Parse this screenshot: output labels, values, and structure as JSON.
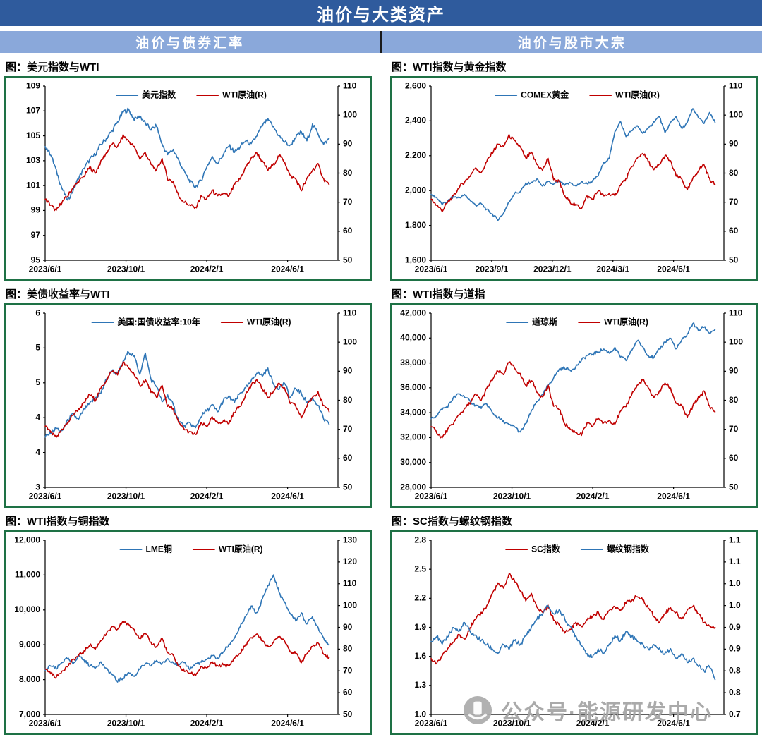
{
  "page": {
    "title": "油价与大类资产",
    "left_header": "油价与债券汇率",
    "right_header": "油价与股市大宗"
  },
  "watermark": {
    "text": "公众号·能源研发中心"
  },
  "colors": {
    "title_bg": "#2F5B9D",
    "subheader_bg": "#8AA8DA",
    "divider": "#1a1a1a",
    "panel_border": "#1E7145",
    "blue": "#2E75B6",
    "red": "#C00000",
    "axis": "#000000",
    "watermark_gray": "#A3A3A3"
  },
  "chart_data": [
    {
      "id": "dollar-index-wti",
      "type": "line",
      "title": "图：美元指数与WTI",
      "legend_position": "top-center",
      "grid": false,
      "x_labels": [
        {
          "text": "2023/6/1",
          "pos": 0.0
        },
        {
          "text": "2023/10/1",
          "pos": 0.276
        },
        {
          "text": "2024/2/1",
          "pos": 0.552
        },
        {
          "text": "2024/6/1",
          "pos": 0.828
        }
      ],
      "left_axis": {
        "min": 95,
        "max": 109,
        "tick_labels": [
          "109",
          "107",
          "105",
          "103",
          "101",
          "99",
          "97",
          "95"
        ]
      },
      "right_axis": {
        "min": 50,
        "max": 110,
        "tick_labels": [
          "110",
          "100",
          "90",
          "80",
          "70",
          "60",
          "50"
        ]
      },
      "series": [
        {
          "name": "美元指数",
          "color": "blue",
          "axis": "left",
          "jitter": 0.35,
          "values": [
            104.2,
            103.5,
            102.2,
            100.8,
            99.8,
            100.6,
            101.6,
            102.4,
            103.1,
            103.5,
            104.3,
            104.8,
            105.4,
            106.1,
            106.9,
            107.1,
            106.3,
            106.6,
            106.0,
            105.5,
            105.8,
            104.3,
            103.5,
            103.9,
            103.0,
            102.1,
            101.3,
            100.9,
            101.4,
            102.5,
            103.3,
            102.8,
            103.5,
            104.2,
            103.7,
            104.1,
            104.6,
            104.3,
            105.0,
            105.8,
            106.3,
            105.7,
            105.0,
            104.5,
            104.2,
            104.9,
            105.3,
            104.6,
            105.9,
            105.2,
            104.3,
            104.8
          ]
        },
        {
          "name": "WTI原油(R)",
          "color": "red",
          "axis": "right",
          "jitter": 1.3,
          "values": [
            71,
            69,
            67,
            70,
            72,
            75,
            77,
            79,
            82,
            80,
            84,
            87,
            90,
            89,
            93,
            91,
            89,
            85,
            87,
            83,
            81,
            85,
            78,
            77,
            72,
            70,
            69,
            68,
            72,
            71,
            74,
            72,
            73,
            72,
            76,
            78,
            82,
            85,
            87,
            84,
            81,
            83,
            86,
            84,
            79,
            78,
            74,
            78,
            81,
            83,
            78,
            76
          ]
        }
      ]
    },
    {
      "id": "gold-wti",
      "type": "line",
      "title": "图：WTI指数与黄金指数",
      "legend_position": "top-center",
      "grid": false,
      "x_labels": [
        {
          "text": "2023/6/1",
          "pos": 0.0
        },
        {
          "text": "2023/9/1",
          "pos": 0.207
        },
        {
          "text": "2023/12/1",
          "pos": 0.414
        },
        {
          "text": "2024/3/1",
          "pos": 0.621
        },
        {
          "text": "2024/6/1",
          "pos": 0.828
        }
      ],
      "left_axis": {
        "min": 1600,
        "max": 2600,
        "tick_labels": [
          "2,600",
          "2,400",
          "2,200",
          "2,000",
          "1,800",
          "1,600"
        ]
      },
      "right_axis": {
        "min": 50,
        "max": 110,
        "tick_labels": [
          "110",
          "100",
          "90",
          "80",
          "70",
          "60",
          "50"
        ]
      },
      "series": [
        {
          "name": "COMEX黄金",
          "color": "blue",
          "axis": "left",
          "jitter": 14,
          "values": [
            1975,
            1960,
            1920,
            1940,
            1965,
            1958,
            1975,
            1945,
            1915,
            1925,
            1890,
            1865,
            1832,
            1870,
            1935,
            1985,
            1992,
            2040,
            2045,
            2065,
            2025,
            2050,
            2035,
            2055,
            2030,
            2045,
            2025,
            2048,
            2040,
            2055,
            2085,
            2160,
            2185,
            2340,
            2395,
            2310,
            2345,
            2370,
            2330,
            2355,
            2395,
            2425,
            2330,
            2390,
            2425,
            2355,
            2390,
            2470,
            2420,
            2385,
            2445,
            2390
          ]
        },
        {
          "name": "WTI原油(R)",
          "color": "red",
          "axis": "right",
          "jitter": 1.3,
          "values": [
            71,
            69,
            67,
            70,
            72,
            75,
            77,
            79,
            82,
            80,
            84,
            87,
            90,
            89,
            93,
            91,
            89,
            85,
            87,
            83,
            81,
            85,
            78,
            77,
            72,
            70,
            69,
            68,
            72,
            71,
            74,
            72,
            73,
            72,
            76,
            78,
            82,
            85,
            87,
            84,
            81,
            83,
            86,
            84,
            79,
            78,
            74,
            78,
            81,
            83,
            78,
            76
          ]
        }
      ]
    },
    {
      "id": "treasury-yield-wti",
      "type": "line",
      "title": "图：美债收益率与WTI",
      "legend_position": "top-center",
      "grid": false,
      "x_labels": [
        {
          "text": "2023/6/1",
          "pos": 0.0
        },
        {
          "text": "2023/10/1",
          "pos": 0.276
        },
        {
          "text": "2024/2/1",
          "pos": 0.552
        },
        {
          "text": "2024/6/1",
          "pos": 0.828
        }
      ],
      "left_axis": {
        "min": 3.0,
        "max": 5.5,
        "tick_labels": [
          "6",
          "5",
          "5",
          "4",
          "4",
          "3"
        ]
      },
      "right_axis": {
        "min": 50,
        "max": 110,
        "tick_labels": [
          "110",
          "100",
          "90",
          "80",
          "70",
          "60",
          "50"
        ]
      },
      "series": [
        {
          "name": "美国:国债收益率:10年",
          "color": "blue",
          "axis": "left",
          "jitter": 0.06,
          "values": [
            3.72,
            3.78,
            3.85,
            3.8,
            3.96,
            4.05,
            3.97,
            4.12,
            4.2,
            4.28,
            4.35,
            4.55,
            4.68,
            4.62,
            4.8,
            4.95,
            4.88,
            4.63,
            4.92,
            4.55,
            4.45,
            4.22,
            4.32,
            4.18,
            3.95,
            3.88,
            3.92,
            3.85,
            4.02,
            4.1,
            4.18,
            4.08,
            4.25,
            4.3,
            4.22,
            4.35,
            4.42,
            4.52,
            4.65,
            4.6,
            4.7,
            4.48,
            4.42,
            4.5,
            4.28,
            4.42,
            4.35,
            4.22,
            4.28,
            4.18,
            3.98,
            3.9
          ]
        },
        {
          "name": "WTI原油(R)",
          "color": "red",
          "axis": "right",
          "jitter": 1.3,
          "values": [
            71,
            69,
            67,
            70,
            72,
            75,
            77,
            79,
            82,
            80,
            84,
            87,
            90,
            89,
            93,
            91,
            89,
            85,
            87,
            83,
            81,
            85,
            78,
            77,
            72,
            70,
            69,
            68,
            72,
            71,
            74,
            72,
            73,
            72,
            76,
            78,
            82,
            85,
            87,
            84,
            81,
            83,
            86,
            84,
            79,
            78,
            74,
            78,
            81,
            83,
            78,
            76
          ]
        }
      ]
    },
    {
      "id": "dow-wti",
      "type": "line",
      "title": "图：WTI指数与道指",
      "legend_position": "top-center",
      "grid": false,
      "x_labels": [
        {
          "text": "2023/6/1",
          "pos": 0.0
        },
        {
          "text": "2023/10/1",
          "pos": 0.276
        },
        {
          "text": "2024/2/1",
          "pos": 0.552
        },
        {
          "text": "2024/6/1",
          "pos": 0.828
        }
      ],
      "left_axis": {
        "min": 28000,
        "max": 42000,
        "tick_labels": [
          "42,000",
          "40,000",
          "38,000",
          "36,000",
          "34,000",
          "32,000",
          "30,000",
          "28,000"
        ]
      },
      "right_axis": {
        "min": 50,
        "max": 110,
        "tick_labels": [
          "110",
          "100",
          "90",
          "80",
          "70",
          "60",
          "50"
        ]
      },
      "series": [
        {
          "name": "道琼斯",
          "color": "blue",
          "axis": "left",
          "jitter": 260,
          "values": [
            33500,
            33800,
            34300,
            34500,
            35200,
            35500,
            35300,
            34900,
            34600,
            34400,
            34700,
            34000,
            33600,
            33300,
            33000,
            32900,
            32400,
            33100,
            34100,
            34900,
            35400,
            36200,
            36800,
            37500,
            37600,
            37400,
            37700,
            38200,
            38600,
            38700,
            38900,
            39100,
            38800,
            39200,
            38500,
            38200,
            39000,
            39800,
            39300,
            38600,
            38400,
            39100,
            39700,
            40000,
            39100,
            39800,
            40300,
            41200,
            40600,
            40900,
            40400,
            40700
          ]
        },
        {
          "name": "WTI原油(R)",
          "color": "red",
          "axis": "right",
          "jitter": 1.3,
          "values": [
            71,
            69,
            67,
            70,
            72,
            75,
            77,
            79,
            82,
            80,
            84,
            87,
            90,
            89,
            93,
            91,
            89,
            85,
            87,
            83,
            81,
            85,
            78,
            77,
            72,
            70,
            69,
            68,
            72,
            71,
            74,
            72,
            73,
            72,
            76,
            78,
            82,
            85,
            87,
            84,
            81,
            83,
            86,
            84,
            79,
            78,
            74,
            78,
            81,
            83,
            78,
            76
          ]
        }
      ]
    },
    {
      "id": "copper-wti",
      "type": "line",
      "title": "图：WTI指数与铜指数",
      "legend_position": "top-center",
      "grid": false,
      "x_labels": [
        {
          "text": "2023/6/1",
          "pos": 0.0
        },
        {
          "text": "2023/10/1",
          "pos": 0.276
        },
        {
          "text": "2024/2/1",
          "pos": 0.552
        },
        {
          "text": "2024/6/1",
          "pos": 0.828
        }
      ],
      "left_axis": {
        "min": 7000,
        "max": 12000,
        "tick_labels": [
          "12,000",
          "11,000",
          "10,000",
          "9,000",
          "8,000",
          "7,000"
        ]
      },
      "right_axis": {
        "min": 50,
        "max": 130,
        "tick_labels": [
          "130",
          "120",
          "110",
          "100",
          "90",
          "80",
          "70",
          "60",
          "50"
        ]
      },
      "series": [
        {
          "name": "LME铜",
          "color": "blue",
          "axis": "left",
          "jitter": 100,
          "values": [
            8250,
            8400,
            8300,
            8500,
            8600,
            8450,
            8700,
            8550,
            8400,
            8350,
            8500,
            8300,
            8150,
            7950,
            8050,
            8200,
            8100,
            8300,
            8450,
            8400,
            8550,
            8450,
            8600,
            8500,
            8400,
            8500,
            8300,
            8450,
            8500,
            8550,
            8700,
            8600,
            8800,
            9000,
            9200,
            9500,
            9800,
            10100,
            9900,
            10300,
            10700,
            11000,
            10500,
            10200,
            9900,
            9700,
            9900,
            9600,
            9800,
            9500,
            9200,
            9000
          ]
        },
        {
          "name": "WTI原油(R)",
          "color": "red",
          "axis": "right",
          "jitter": 1.5,
          "values": [
            71,
            69,
            67,
            70,
            72,
            75,
            77,
            79,
            82,
            80,
            84,
            87,
            90,
            89,
            93,
            91,
            89,
            85,
            87,
            83,
            81,
            85,
            78,
            77,
            72,
            70,
            69,
            68,
            72,
            71,
            74,
            72,
            73,
            72,
            76,
            78,
            82,
            85,
            87,
            84,
            81,
            83,
            86,
            84,
            79,
            78,
            74,
            78,
            81,
            83,
            78,
            76
          ]
        }
      ]
    },
    {
      "id": "sc-rebar",
      "type": "line",
      "title": "图：SC指数与螺纹钢指数",
      "legend_position": "top-center",
      "grid": false,
      "x_labels": [
        {
          "text": "2023/6/1",
          "pos": 0.0
        },
        {
          "text": "2023/10/1",
          "pos": 0.276
        },
        {
          "text": "2024/2/1",
          "pos": 0.552
        },
        {
          "text": "2024/6/1",
          "pos": 0.828
        }
      ],
      "left_axis": {
        "min": 1.0,
        "max": 2.8,
        "tick_labels": [
          "2.8",
          "2.5",
          "2.2",
          "1.9",
          "1.6",
          "1.3",
          "1.0"
        ]
      },
      "right_axis": {
        "min": 0.7,
        "max": 1.1,
        "tick_labels": [
          "1.1",
          "1.1",
          "1.0",
          "1.0",
          "0.9",
          "0.9",
          "0.8",
          "0.8",
          "0.7"
        ]
      },
      "series": [
        {
          "name": "SC指数",
          "color": "red",
          "axis": "left",
          "jitter": 0.04,
          "values": [
            1.58,
            1.52,
            1.6,
            1.68,
            1.75,
            1.82,
            1.78,
            1.9,
            1.98,
            2.05,
            2.12,
            2.25,
            2.35,
            2.3,
            2.45,
            2.38,
            2.28,
            2.18,
            2.25,
            2.1,
            2.05,
            2.12,
            1.98,
            1.92,
            1.85,
            1.88,
            1.95,
            1.9,
            1.98,
            2.02,
            2.05,
            1.98,
            2.08,
            2.12,
            2.08,
            2.15,
            2.18,
            2.22,
            2.18,
            2.1,
            2.02,
            1.95,
            2.05,
            2.1,
            2.05,
            1.98,
            2.08,
            2.12,
            2.05,
            1.95,
            1.92,
            1.9
          ]
        },
        {
          "name": "螺纹钢指数",
          "color": "blue",
          "axis": "right",
          "jitter": 0.01,
          "values": [
            0.87,
            0.88,
            0.86,
            0.88,
            0.9,
            0.89,
            0.91,
            0.89,
            0.88,
            0.87,
            0.86,
            0.85,
            0.84,
            0.86,
            0.85,
            0.87,
            0.86,
            0.88,
            0.9,
            0.92,
            0.93,
            0.95,
            0.93,
            0.94,
            0.92,
            0.9,
            0.88,
            0.86,
            0.84,
            0.83,
            0.85,
            0.84,
            0.86,
            0.88,
            0.87,
            0.89,
            0.88,
            0.87,
            0.86,
            0.85,
            0.86,
            0.85,
            0.84,
            0.85,
            0.83,
            0.84,
            0.82,
            0.83,
            0.81,
            0.8,
            0.81,
            0.78
          ]
        }
      ]
    }
  ]
}
